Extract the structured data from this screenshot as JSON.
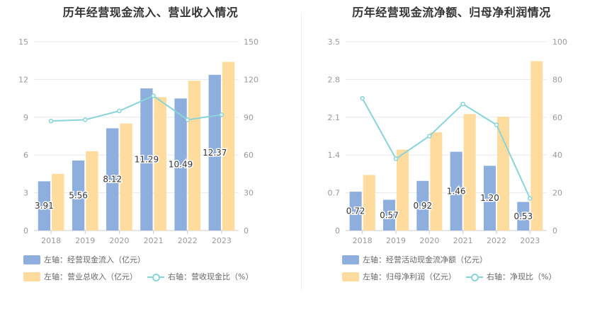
{
  "colors": {
    "bar1": "#8eaedd",
    "bar2": "#ffdc9e",
    "line": "#88d4d8",
    "axis": "#999999",
    "grid": "#e8e8e8"
  },
  "chart_data": [
    {
      "type": "bar",
      "title": "历年经营现金流入、营业收入情况",
      "categories": [
        "2018",
        "2019",
        "2020",
        "2021",
        "2022",
        "2023"
      ],
      "left_axis": {
        "min": 0,
        "max": 15,
        "ticks": [
          "0",
          "3",
          "6",
          "9",
          "12",
          "15"
        ]
      },
      "right_axis": {
        "min": 0,
        "max": 150,
        "ticks": [
          "0",
          "30",
          "60",
          "90",
          "120",
          "150"
        ]
      },
      "series": [
        {
          "name": "左轴：经营现金流入（亿元）",
          "axis": "left",
          "kind": "bar",
          "values": [
            3.91,
            5.56,
            8.12,
            11.29,
            10.49,
            12.37
          ],
          "labels": [
            "3.91",
            "5.56",
            "8.12",
            "11.29",
            "10.49",
            "12.37"
          ]
        },
        {
          "name": "左轴：营业总收入（亿元）",
          "axis": "left",
          "kind": "bar",
          "values": [
            4.5,
            6.3,
            8.5,
            10.6,
            11.9,
            13.4
          ]
        },
        {
          "name": "右轴：营收现金比（%）",
          "axis": "right",
          "kind": "line",
          "values": [
            87,
            88,
            95,
            107,
            88,
            92
          ]
        }
      ],
      "legend": {
        "placement": "bottom-left"
      }
    },
    {
      "type": "bar",
      "title": "历年经营现金流净额、归母净利润情况",
      "categories": [
        "2018",
        "2019",
        "2020",
        "2021",
        "2022",
        "2023"
      ],
      "left_axis": {
        "min": 0,
        "max": 3.5,
        "ticks": [
          "0",
          "0.7",
          "1.4",
          "2.1",
          "2.8",
          "3.5"
        ]
      },
      "right_axis": {
        "min": 0,
        "max": 100,
        "ticks": [
          "0",
          "20",
          "40",
          "60",
          "80",
          "100"
        ]
      },
      "series": [
        {
          "name": "左轴：经营活动现金流净额（亿元）",
          "axis": "left",
          "kind": "bar",
          "values": [
            0.72,
            0.57,
            0.92,
            1.46,
            1.2,
            0.53
          ],
          "labels": [
            "0.72",
            "0.57",
            "0.92",
            "1.46",
            "1.20",
            "0.53"
          ]
        },
        {
          "name": "左轴：归母净利润（亿元）",
          "axis": "left",
          "kind": "bar",
          "values": [
            1.03,
            1.5,
            1.82,
            2.16,
            2.11,
            3.14
          ]
        },
        {
          "name": "右轴：净现比（%）",
          "axis": "right",
          "kind": "line",
          "values": [
            70,
            38,
            50,
            67,
            56,
            17
          ]
        }
      ],
      "legend": {
        "placement": "bottom-left"
      }
    }
  ]
}
